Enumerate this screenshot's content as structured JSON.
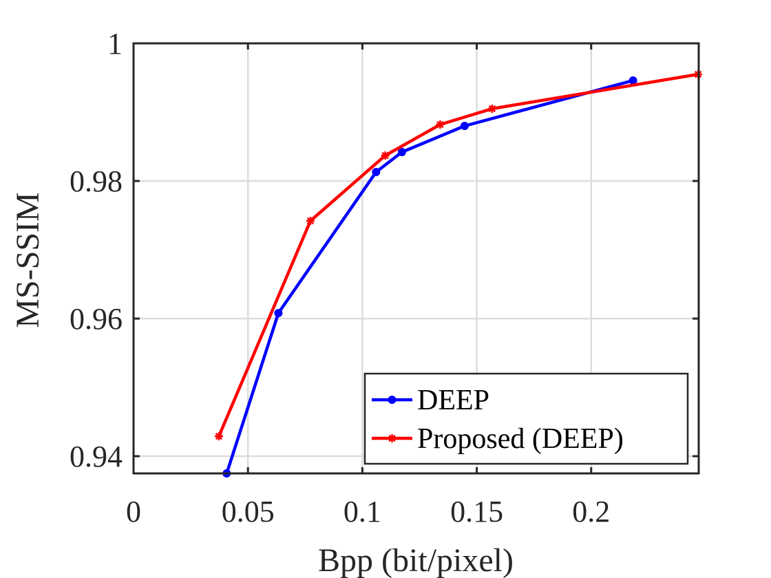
{
  "chart_data": {
    "type": "line",
    "title": "",
    "xlabel": "Bpp (bit/pixel)",
    "ylabel": "MS-SSIM",
    "xlim": [
      0,
      0.247
    ],
    "ylim": [
      0.9375,
      1.0
    ],
    "x_ticks": [
      0,
      0.05,
      0.1,
      0.15,
      0.2
    ],
    "x_tick_labels": [
      "0",
      "0.05",
      "0.1",
      "0.15",
      "0.2"
    ],
    "y_ticks": [
      0.94,
      0.96,
      0.98,
      1.0
    ],
    "y_tick_labels": [
      "0.94",
      "0.96",
      "0.98",
      "1"
    ],
    "grid": true,
    "legend_position": "bottom-right",
    "series": [
      {
        "name": "DEEP",
        "color": "#0000ff",
        "marker": "dot",
        "x": [
          0.0407,
          0.0633,
          0.106,
          0.1173,
          0.1447,
          0.2183
        ],
        "y": [
          0.9375,
          0.9608,
          0.9813,
          0.9842,
          0.988,
          0.9946
        ]
      },
      {
        "name": "Proposed (DEEP)",
        "color": "#ff0000",
        "marker": "asterisk",
        "x": [
          0.0373,
          0.0773,
          0.11,
          0.134,
          0.1567,
          0.2467
        ],
        "y": [
          0.9429,
          0.9742,
          0.9837,
          0.9882,
          0.9905,
          0.9955
        ]
      }
    ]
  }
}
